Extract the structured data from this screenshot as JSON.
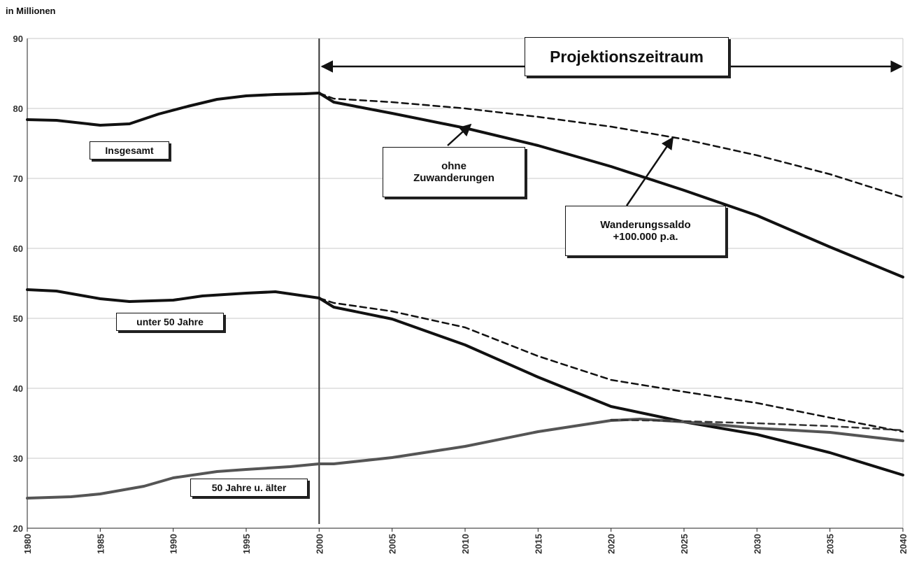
{
  "chart_data": {
    "type": "line",
    "title": "",
    "ylabel": "in Millionen",
    "xlabel": "",
    "xlim": [
      1980,
      2040
    ],
    "ylim": [
      20,
      90
    ],
    "yticks": [
      20,
      30,
      40,
      50,
      60,
      70,
      80,
      90
    ],
    "xticks": [
      1980,
      1985,
      1990,
      1995,
      2000,
      2005,
      2010,
      2015,
      2020,
      2025,
      2030,
      2035,
      2040
    ],
    "grid": true,
    "projection_start": 2000,
    "series": [
      {
        "name": "Insgesamt",
        "style": "solid",
        "color": "#111111",
        "x": [
          1980,
          1982,
          1985,
          1987,
          1989,
          1991,
          1993,
          1995,
          1997,
          1999,
          2000
        ],
        "y": [
          78.4,
          78.3,
          77.6,
          77.8,
          79.2,
          80.3,
          81.3,
          81.8,
          82.0,
          82.1,
          82.2
        ]
      },
      {
        "name": "ohne Zuwanderungen",
        "style": "solid",
        "color": "#111111",
        "x": [
          2000,
          2001,
          2005,
          2010,
          2015,
          2020,
          2025,
          2030,
          2035,
          2040
        ],
        "y": [
          82.2,
          80.9,
          79.3,
          77.2,
          74.7,
          71.7,
          68.3,
          64.7,
          60.2,
          55.9
        ]
      },
      {
        "name": "Wanderungssaldo +100.000 p.a.",
        "style": "dashed",
        "color": "#111111",
        "x": [
          2000,
          2001,
          2005,
          2010,
          2015,
          2020,
          2025,
          2030,
          2035,
          2040
        ],
        "y": [
          82.2,
          81.4,
          80.9,
          80.0,
          78.8,
          77.4,
          75.6,
          73.3,
          70.6,
          67.3
        ]
      },
      {
        "name": "unter 50 Jahre",
        "style": "solid",
        "color": "#111111",
        "x": [
          1980,
          1982,
          1985,
          1987,
          1990,
          1992,
          1995,
          1997,
          2000
        ],
        "y": [
          54.1,
          53.9,
          52.8,
          52.4,
          52.6,
          53.2,
          53.6,
          53.8,
          52.9
        ]
      },
      {
        "name": "",
        "style": "solid",
        "color": "#111111",
        "x": [
          2000,
          2001,
          2005,
          2010,
          2015,
          2020,
          2025,
          2030,
          2035,
          2040
        ],
        "y": [
          52.9,
          51.6,
          49.9,
          46.2,
          41.6,
          37.4,
          35.2,
          33.4,
          30.8,
          27.6
        ]
      },
      {
        "name": "",
        "style": "dashed",
        "color": "#111111",
        "x": [
          2000,
          2001,
          2005,
          2010,
          2015,
          2020,
          2025,
          2030,
          2035,
          2040
        ],
        "y": [
          52.9,
          52.2,
          51.0,
          48.7,
          44.6,
          41.2,
          39.5,
          37.9,
          35.8,
          33.8
        ]
      },
      {
        "name": "50 Jahre u. älter",
        "style": "solid",
        "color": "#555555",
        "x": [
          1980,
          1983,
          1985,
          1988,
          1990,
          1993,
          1995,
          1998,
          2000,
          2001,
          2005,
          2010,
          2015,
          2020,
          2022,
          2025,
          2030,
          2035,
          2040
        ],
        "y": [
          24.3,
          24.5,
          24.9,
          26.0,
          27.2,
          28.1,
          28.4,
          28.8,
          29.2,
          29.2,
          30.1,
          31.7,
          33.8,
          35.4,
          35.6,
          35.2,
          34.3,
          33.7,
          32.5
        ]
      },
      {
        "name": "",
        "style": "dashed",
        "color": "#333333",
        "x": [
          2020,
          2025,
          2030,
          2035,
          2040
        ],
        "y": [
          35.5,
          35.3,
          35.0,
          34.6,
          34.0
        ]
      }
    ],
    "annotations": {
      "projection": "Projektionszeitraum",
      "total": "Insgesamt",
      "without_migration": "ohne\nZuwanderungen",
      "migration": "Wanderungssaldo\n+100.000 p.a.",
      "under50": "unter 50 Jahre",
      "over50": "50 Jahre u. älter"
    }
  }
}
